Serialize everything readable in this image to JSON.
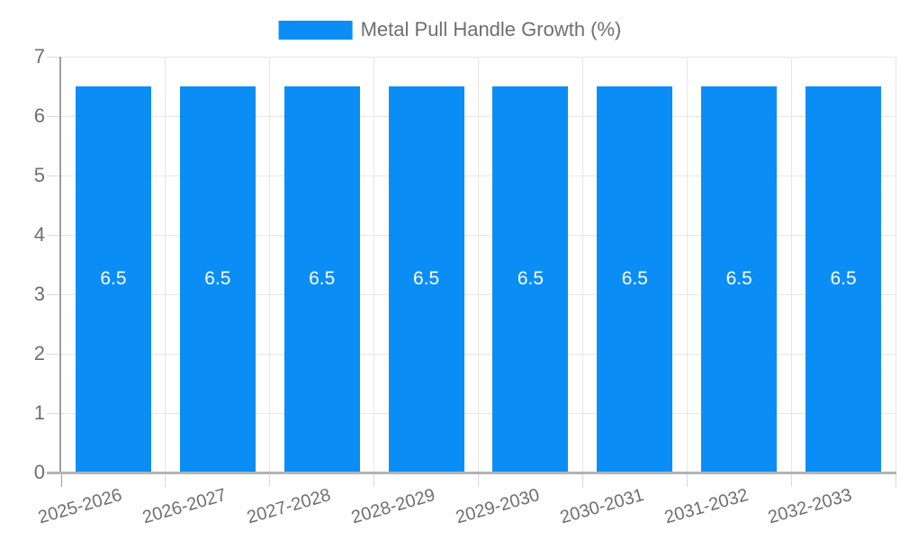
{
  "chart_data": {
    "type": "bar",
    "title": "Metal Pull Handle Growth (%)",
    "categories": [
      "2025-2026",
      "2026-2027",
      "2027-2028",
      "2028-2029",
      "2029-2030",
      "2030-2031",
      "2031-2032",
      "2032-2033"
    ],
    "series": [
      {
        "name": "Metal Pull Handle Growth (%)",
        "values": [
          6.5,
          6.5,
          6.5,
          6.5,
          6.5,
          6.5,
          6.5,
          6.5
        ],
        "bar_labels": [
          "6.5",
          "6.5",
          "6.5",
          "6.5",
          "6.5",
          "6.5",
          "6.5",
          "6.5"
        ]
      }
    ],
    "xlabel": "",
    "ylabel": "",
    "ylim": [
      0,
      7
    ],
    "yticks": [
      "0",
      "1",
      "2",
      "3",
      "4",
      "5",
      "6",
      "7"
    ],
    "grid": true,
    "legend_position": "top",
    "colors": {
      "bar": "#0a8ef6",
      "bar_label_text": "#ffffff",
      "axis_text": "#6f6f6f",
      "legend_text": "#6f6f6f",
      "gridline": "#e6e6e6",
      "axis_line": "#9e9e9e",
      "baseline": "#b3b3b3",
      "tick": "#d9d9d9"
    }
  }
}
